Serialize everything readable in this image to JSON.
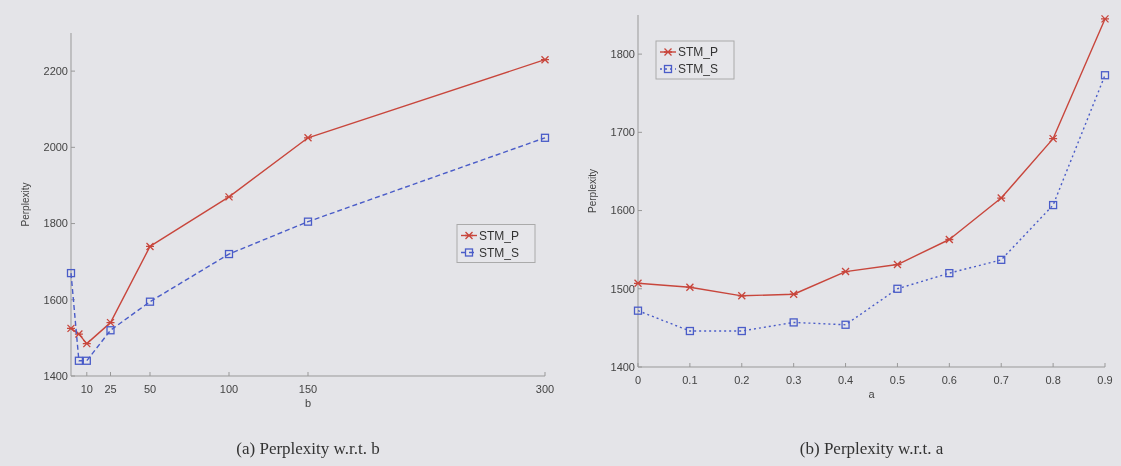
{
  "chart_data": [
    {
      "type": "line",
      "title": "(a) Perplexity w.r.t. b",
      "xlabel": "b",
      "ylabel": "Perplexity",
      "xlim": [
        0,
        300
      ],
      "xticks": [
        10,
        25,
        50,
        100,
        150,
        300
      ],
      "ylim": [
        1400,
        2300
      ],
      "yticks": [
        1400,
        1600,
        1800,
        2000,
        2200
      ],
      "legend": "right",
      "grid": false,
      "x": [
        0,
        5,
        10,
        25,
        50,
        100,
        150,
        300
      ],
      "series": [
        {
          "name": "STM_P",
          "color": "#c8463c",
          "marker": "cross",
          "line_style": "solid",
          "values": [
            1525,
            1510,
            1485,
            1540,
            1740,
            1870,
            2025,
            2230
          ]
        },
        {
          "name": "STM_S",
          "color": "#4a5cc8",
          "marker": "square",
          "line_style": "dashed",
          "values": [
            1670,
            1440,
            1440,
            1520,
            1595,
            1720,
            1805,
            2025
          ]
        }
      ]
    },
    {
      "type": "line",
      "title": "(b) Perplexity w.r.t. a",
      "xlabel": "a",
      "ylabel": "Perplexity",
      "xlim": [
        0,
        0.9
      ],
      "xticks": [
        0,
        0.1,
        0.2,
        0.3,
        0.4,
        0.5,
        0.6,
        0.7,
        0.8,
        0.9
      ],
      "ylim": [
        1400,
        1850
      ],
      "yticks": [
        1400,
        1500,
        1600,
        1700,
        1800
      ],
      "legend": "top left",
      "grid": false,
      "x": [
        0,
        0.1,
        0.2,
        0.3,
        0.4,
        0.5,
        0.6,
        0.7,
        0.8,
        0.9
      ],
      "series": [
        {
          "name": "STM_P",
          "color": "#c8463c",
          "marker": "cross",
          "line_style": "solid",
          "values": [
            1507,
            1502,
            1491,
            1493,
            1522,
            1531,
            1563,
            1616,
            1692,
            1845
          ]
        },
        {
          "name": "STM_S",
          "color": "#4a5cc8",
          "marker": "square",
          "line_style": "dotted",
          "values": [
            1472,
            1446,
            1446,
            1457,
            1454,
            1500,
            1520,
            1537,
            1607,
            1773
          ]
        }
      ]
    }
  ]
}
